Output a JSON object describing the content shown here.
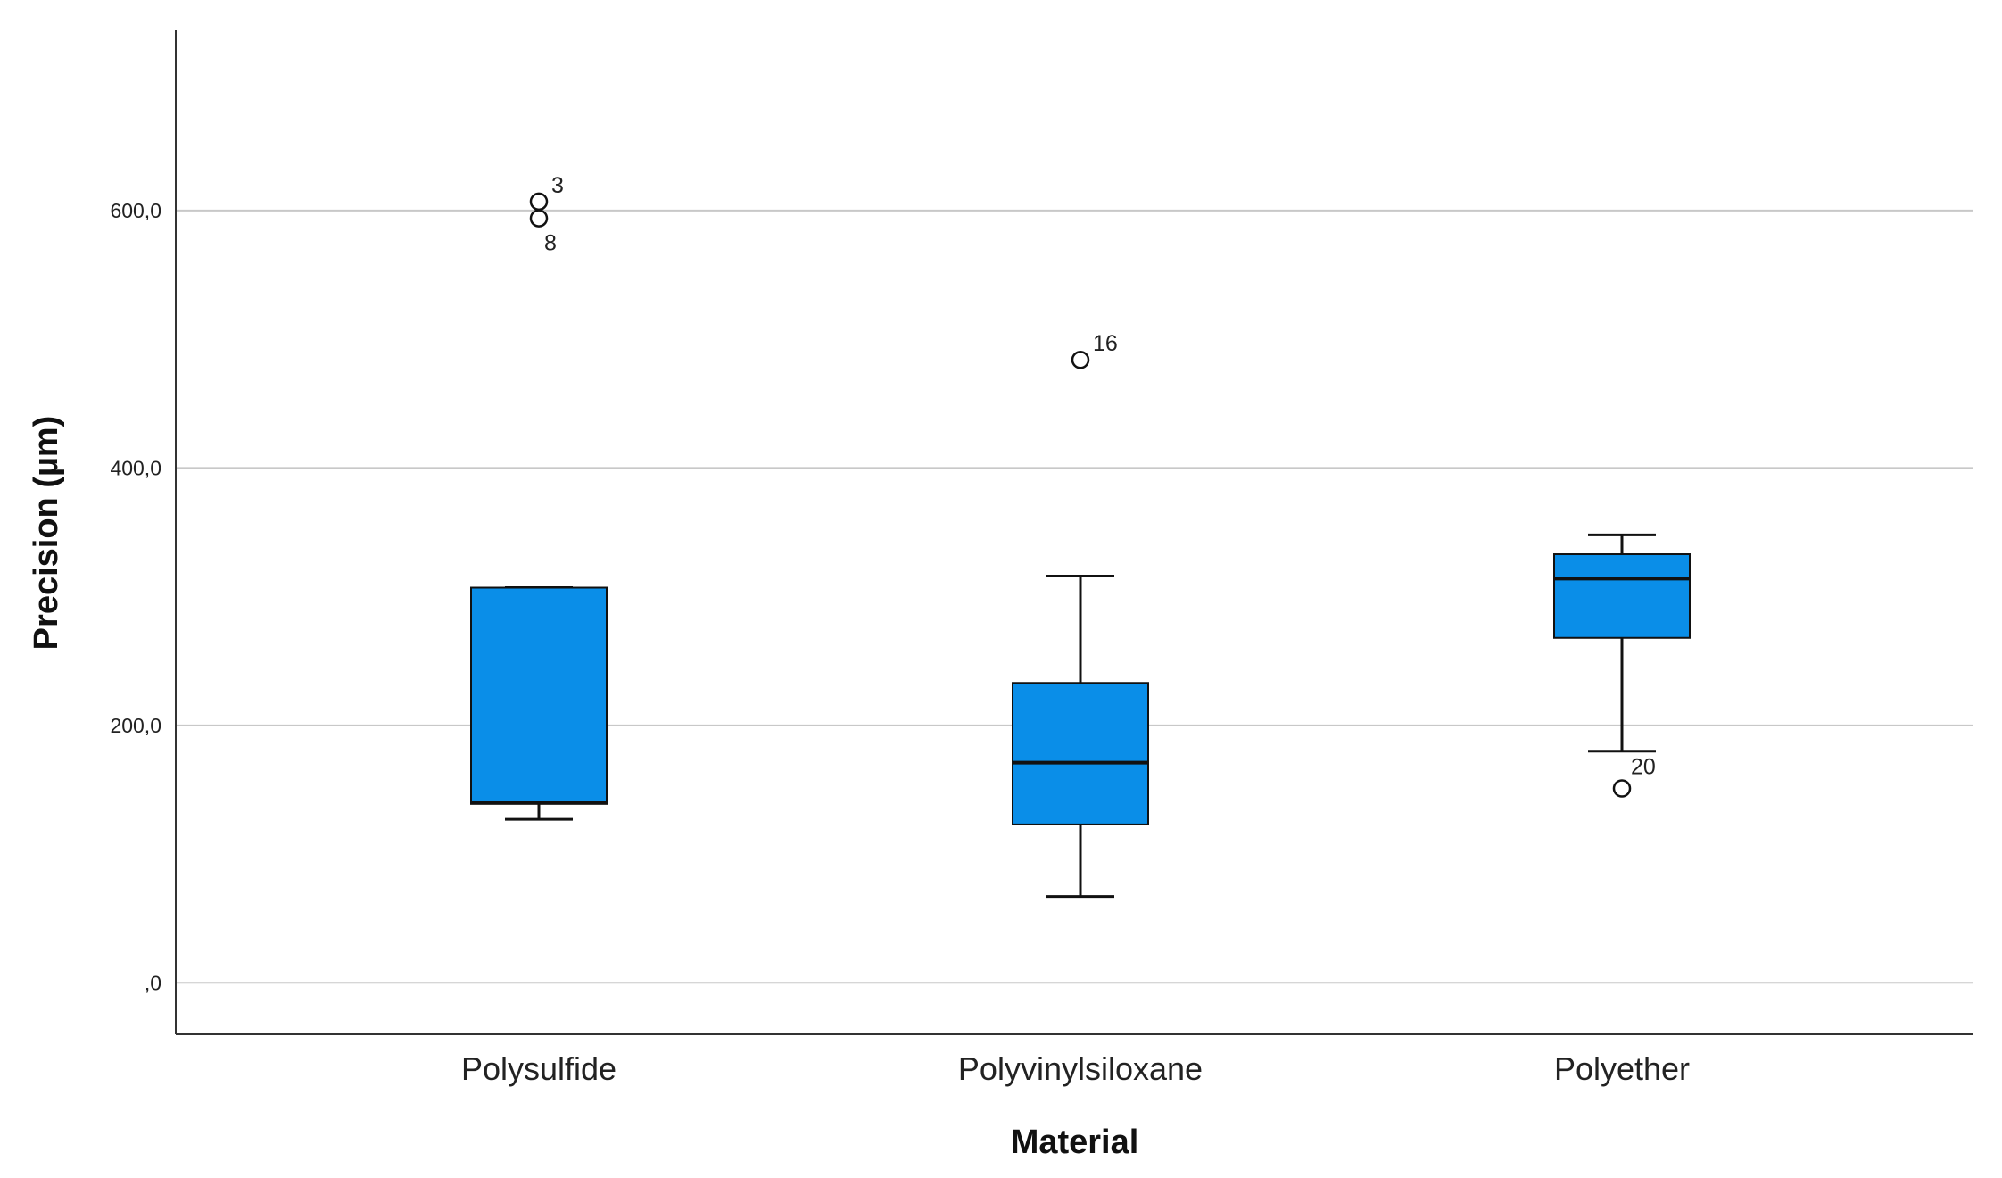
{
  "chart_data": {
    "type": "boxplot",
    "xlabel": "Material",
    "ylabel": "Precision (µm)",
    "ylim": [
      -40,
      740
    ],
    "yticks": [
      0,
      200,
      400,
      600
    ],
    "ytick_labels": [
      ",0",
      "200,0",
      "400,0",
      "600,0"
    ],
    "grid": true,
    "colors": {
      "box": "#0a8ee8",
      "stroke": "#111111",
      "grid": "#c8c8c8"
    },
    "categories": [
      "Polysulfide",
      "Polyvinylsiloxane",
      "Polyether"
    ],
    "boxes": [
      {
        "category": "Polysulfide",
        "whisker_low": 127,
        "q1": 139,
        "median": 140,
        "q3": 307,
        "whisker_high": 307,
        "outliers": [
          {
            "value": 607,
            "label": "3"
          },
          {
            "value": 594,
            "label": "8"
          }
        ]
      },
      {
        "category": "Polyvinylsiloxane",
        "whisker_low": 67,
        "q1": 123,
        "median": 171,
        "q3": 233,
        "whisker_high": 316,
        "outliers": [
          {
            "value": 484,
            "label": "16"
          }
        ]
      },
      {
        "category": "Polyether",
        "whisker_low": 180,
        "q1": 268,
        "median": 314,
        "q3": 333,
        "whisker_high": 348,
        "outliers": [
          {
            "value": 151,
            "label": "20"
          }
        ]
      }
    ]
  }
}
